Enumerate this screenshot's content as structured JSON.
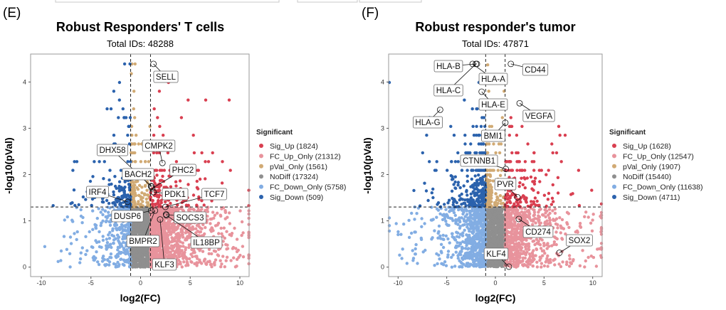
{
  "chart_data": [
    {
      "type": "scatter",
      "panel_label": "(E)",
      "title": "Robust Responders' T cells",
      "subtitle": "Total IDs: 48288",
      "xlabel": "log2(FC)",
      "ylabel": "-log10(pVal)",
      "xlim": [
        -11,
        11
      ],
      "ylim": [
        -0.2,
        4.6
      ],
      "xticks": [
        "-10",
        "-5",
        "0",
        "5",
        "10"
      ],
      "yticks": [
        "0",
        "1",
        "2",
        "3",
        "4"
      ],
      "grid": false,
      "thresholds": {
        "log2fc": [
          -1,
          1
        ],
        "neg_log10_pval": 1.3
      },
      "legend": {
        "title": "Significant",
        "position": "right",
        "items": [
          {
            "category": "Sig_Up",
            "count": 1824,
            "label": "Sig_Up (1824)",
            "color": "#d93f50"
          },
          {
            "category": "FC_Up_Only",
            "count": 21312,
            "label": "FC_Up_Only (21312)",
            "color": "#e8939c"
          },
          {
            "category": "pVal_Only",
            "count": 1561,
            "label": "pVal_Only (1561)",
            "color": "#d1aa74"
          },
          {
            "category": "NoDiff",
            "count": 17324,
            "label": "NoDiff (17324)",
            "color": "#8f8f8f"
          },
          {
            "category": "FC_Down_Only",
            "count": 5758,
            "label": "FC_Down_Only (5758)",
            "color": "#82ade3"
          },
          {
            "category": "Sig_Down",
            "count": 509,
            "label": "Sig_Down (509)",
            "color": "#2b62ad"
          }
        ]
      },
      "labeled_genes": [
        {
          "gene": "SELL",
          "x": 1.3,
          "y": 4.39
        },
        {
          "gene": "CMPK2",
          "x": 2.2,
          "y": 2.25
        },
        {
          "gene": "DHX58",
          "x": 1.1,
          "y": 1.74
        },
        {
          "gene": "BACH2",
          "x": 1.05,
          "y": 1.75
        },
        {
          "gene": "PHC2",
          "x": 1.15,
          "y": 1.7
        },
        {
          "gene": "PDK1",
          "x": 1.3,
          "y": 1.62
        },
        {
          "gene": "TCF7",
          "x": 2.5,
          "y": 1.3
        },
        {
          "gene": "IRF4",
          "x": -1.3,
          "y": 1.41
        },
        {
          "gene": "DUSP6",
          "x": 1.06,
          "y": 1.22
        },
        {
          "gene": "BMPR2",
          "x": 1.45,
          "y": 1.22
        },
        {
          "gene": "SOCS3",
          "x": 2.57,
          "y": 1.14
        },
        {
          "gene": "IL18BP",
          "x": 2.6,
          "y": 1.12
        },
        {
          "gene": "KLF3",
          "x": 1.97,
          "y": 1.03
        }
      ]
    },
    {
      "type": "scatter",
      "panel_label": "(F)",
      "title": "Robust responder's tumor",
      "subtitle": "Total IDs: 47871",
      "xlabel": "log2(FC)",
      "ylabel": "-log10(pVal)",
      "xlim": [
        -11,
        11
      ],
      "ylim": [
        -0.2,
        4.6
      ],
      "xticks": [
        "-10",
        "-5",
        "0",
        "5",
        "10"
      ],
      "yticks": [
        "0",
        "1",
        "2",
        "3",
        "4"
      ],
      "grid": false,
      "thresholds": {
        "log2fc": [
          -1,
          1
        ],
        "neg_log10_pval": 1.3
      },
      "legend": {
        "title": "Significant",
        "position": "right",
        "items": [
          {
            "category": "Sig_Up",
            "count": 1628,
            "label": "Sig_Up (1628)",
            "color": "#d93f50"
          },
          {
            "category": "FC_Up_Only",
            "count": 12547,
            "label": "FC_Up_Only (12547)",
            "color": "#e8939c"
          },
          {
            "category": "pVal_Only",
            "count": 1907,
            "label": "pVal_Only (1907)",
            "color": "#d1aa74"
          },
          {
            "category": "NoDiff",
            "count": 15440,
            "label": "NoDiff (15440)",
            "color": "#8f8f8f"
          },
          {
            "category": "FC_Down_Only",
            "count": 11638,
            "label": "FC_Down_Only (11638)",
            "color": "#82ade3"
          },
          {
            "category": "Sig_Down",
            "count": 4711,
            "label": "Sig_Down (4711)",
            "color": "#2b62ad"
          }
        ]
      },
      "labeled_genes": [
        {
          "gene": "HLA-B",
          "x": -1.9,
          "y": 4.39
        },
        {
          "gene": "HLA-A",
          "x": -2.34,
          "y": 4.39
        },
        {
          "gene": "HLA-C",
          "x": -2.0,
          "y": 4.39
        },
        {
          "gene": "HLA-E",
          "x": -1.41,
          "y": 3.79
        },
        {
          "gene": "HLA-G",
          "x": -5.68,
          "y": 3.4
        },
        {
          "gene": "CD44",
          "x": 1.59,
          "y": 4.39
        },
        {
          "gene": "VEGFA",
          "x": 2.49,
          "y": 3.54
        },
        {
          "gene": "BMI1",
          "x": 1.02,
          "y": 3.12
        },
        {
          "gene": "CTNNB1",
          "x": 1.07,
          "y": 2.12
        },
        {
          "gene": "PVR",
          "x": 2.27,
          "y": 1.51
        },
        {
          "gene": "CD274",
          "x": 2.41,
          "y": 1.04
        },
        {
          "gene": "SOX2",
          "x": 6.58,
          "y": 0.31
        },
        {
          "gene": "KLF4",
          "x": 1.39,
          "y": 0.01
        }
      ]
    }
  ]
}
